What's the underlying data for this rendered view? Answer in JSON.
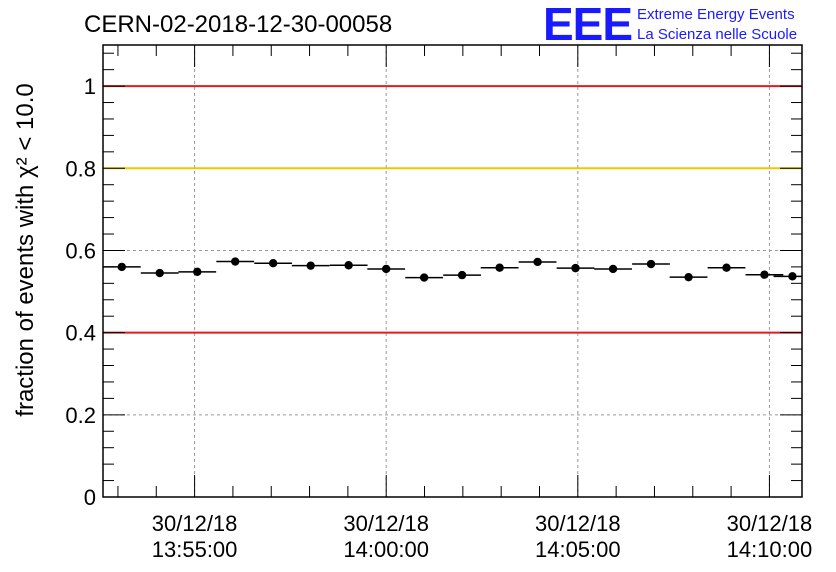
{
  "chart_data": {
    "type": "scatter",
    "title": "CERN-02-2018-12-30-00058",
    "ylabel": "fraction of events with χ² < 10.0",
    "xlabel": "",
    "ylim": [
      0,
      1.1
    ],
    "yticks": [
      0,
      0.2,
      0.4,
      0.6,
      0.8,
      1
    ],
    "ytick_labels": [
      "0",
      "0.2",
      "0.4",
      "0.6",
      "0.8",
      "1"
    ],
    "x_unit": "minutes since 13:50:00",
    "xlim": [
      2.61,
      20.85
    ],
    "xticks": [
      {
        "x": 5,
        "date": "30/12/18",
        "time": "13:55:00"
      },
      {
        "x": 10,
        "date": "30/12/18",
        "time": "14:00:00"
      },
      {
        "x": 15,
        "date": "30/12/18",
        "time": "14:05:00"
      },
      {
        "x": 20,
        "date": "30/12/18",
        "time": "14:10:00"
      }
    ],
    "bin_width": 0.986,
    "series": [
      {
        "name": "fraction",
        "x": [
          3.1,
          4.09,
          5.07,
          6.06,
          7.05,
          8.03,
          9.02,
          10.0,
          10.99,
          11.98,
          12.96,
          13.95,
          14.94,
          15.92,
          16.91,
          17.89,
          18.88,
          19.87,
          20.6
        ],
        "values": [
          0.56,
          0.545,
          0.548,
          0.573,
          0.569,
          0.563,
          0.564,
          0.555,
          0.534,
          0.54,
          0.558,
          0.572,
          0.557,
          0.555,
          0.567,
          0.535,
          0.558,
          0.541,
          0.537
        ]
      }
    ],
    "reference_lines": [
      {
        "y": 1.0,
        "color": "#e8191c"
      },
      {
        "y": 0.8,
        "color": "#f5c400"
      },
      {
        "y": 0.4,
        "color": "#e8191c"
      }
    ],
    "grid": true
  },
  "logo": {
    "text": "EEE",
    "line1": "Extreme Energy Events",
    "line2": "La Scienza nelle Scuole",
    "color": "#1a1aff"
  }
}
